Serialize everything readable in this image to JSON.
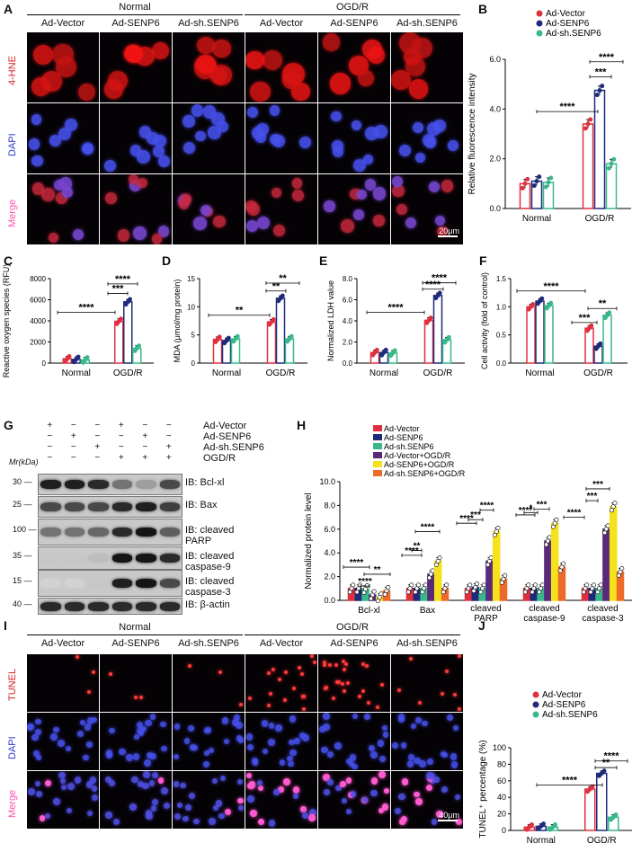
{
  "panels": {
    "A": "A",
    "B": "B",
    "C": "C",
    "D": "D",
    "E": "E",
    "F": "F",
    "G": "G",
    "H": "H",
    "I": "I",
    "J": "J"
  },
  "colors": {
    "vector": "#e0303f",
    "senp6": "#1f2b7a",
    "sh": "#39b98a",
    "vector_ogd": "#5a2a7a",
    "senp6_ogd": "#f5e21a",
    "sh_ogd": "#ee6a2a",
    "red_fluor": "#d81f1f",
    "blue_fluor": "#2a3ad0",
    "pink": "#ff4fb0"
  },
  "micro_A": {
    "group_normal": "Normal",
    "group_ogdr": "OGD/R",
    "cols": [
      "Ad-Vector",
      "Ad-SENP6",
      "Ad-sh.SENP6",
      "Ad-Vector",
      "Ad-SENP6",
      "Ad-sh.SENP6"
    ],
    "rows": [
      "4-HNE",
      "DAPI",
      "Merge"
    ],
    "scale": "20μm"
  },
  "micro_I": {
    "group_normal": "Normal",
    "group_ogdr": "OGD/R",
    "cols": [
      "Ad-Vector",
      "Ad-SENP6",
      "Ad-sh.SENP6",
      "Ad-Vector",
      "Ad-SENP6",
      "Ad-sh.SENP6"
    ],
    "rows": [
      "TUNEL",
      "DAPI",
      "Merge"
    ],
    "scale": "40μm"
  },
  "legend3": [
    "Ad-Vector",
    "Ad-SENP6",
    "Ad-sh.SENP6"
  ],
  "legend6": [
    "Ad-Vector",
    "Ad-SENP6",
    "Ad-sh.SENP6",
    "Ad-Vector+OGD/R",
    "Ad-SENP6+OGD/R",
    "Ad-sh.SENP6+OGD/R"
  ],
  "western": {
    "conditions": [
      [
        "+",
        "−",
        "−",
        "+",
        "−",
        "−"
      ],
      [
        "−",
        "+",
        "−",
        "−",
        "+",
        "−"
      ],
      [
        "−",
        "−",
        "+",
        "−",
        "−",
        "+"
      ],
      [
        "−",
        "−",
        "−",
        "+",
        "+",
        "+"
      ]
    ],
    "condition_labels": [
      "Ad-Vector",
      "Ad-SENP6",
      "Ad-sh.SENP6",
      "OGD/R"
    ],
    "mr_label": "Mr(kDa)",
    "mw": [
      "30",
      "25",
      "100",
      "35",
      "15",
      "40"
    ],
    "ib": [
      "IB: Bcl-xl",
      "IB: Bax",
      "IB: cleaved PARP",
      "IB: cleaved caspase-9",
      "IB: cleaved caspase-3",
      "IB: β-actin"
    ]
  },
  "chart_data": [
    {
      "panel": "B",
      "type": "bar",
      "categories": [
        "Normal",
        "OGD/R"
      ],
      "ylabel": "Relative fluorescence intensity",
      "ylim": [
        0,
        6
      ],
      "yticks": [
        "0.0",
        "2.0",
        "4.0",
        "6.0"
      ],
      "series": [
        {
          "name": "Ad-Vector",
          "values": [
            1.0,
            3.4
          ]
        },
        {
          "name": "Ad-SENP6",
          "values": [
            1.1,
            4.75
          ]
        },
        {
          "name": "Ad-sh.SENP6",
          "values": [
            1.05,
            1.8
          ]
        }
      ],
      "annotations": [
        "****",
        "***",
        "****"
      ]
    },
    {
      "panel": "C",
      "type": "bar",
      "categories": [
        "Normal",
        "OGD/R"
      ],
      "ylabel": "Reactive oxygen species (RFU)",
      "ylim": [
        0,
        8000
      ],
      "yticks": [
        "0",
        "2000",
        "4000",
        "6000",
        "8000"
      ],
      "series": [
        {
          "values": [
            400,
            3950
          ]
        },
        {
          "values": [
            350,
            5800
          ]
        },
        {
          "values": [
            300,
            1400
          ]
        }
      ],
      "annotations": [
        "****",
        "***",
        "****"
      ]
    },
    {
      "panel": "D",
      "type": "bar",
      "categories": [
        "Normal",
        "OGD/R"
      ],
      "ylabel": "MDA (μmol/mg protein)",
      "ylim": [
        0,
        15
      ],
      "yticks": [
        "0",
        "5",
        "10",
        "15"
      ],
      "series": [
        {
          "values": [
            4.2,
            7.3
          ]
        },
        {
          "values": [
            4.0,
            11.5
          ]
        },
        {
          "values": [
            4.3,
            4.3
          ]
        }
      ],
      "annotations": [
        "**",
        "**",
        "**"
      ]
    },
    {
      "panel": "E",
      "type": "bar",
      "categories": [
        "Normal",
        "OGD/R"
      ],
      "ylabel": "Normalized LDH value",
      "ylim": [
        0,
        8
      ],
      "yticks": [
        "0.0",
        "2.0",
        "4.0",
        "6.0",
        "8.0"
      ],
      "series": [
        {
          "values": [
            1.0,
            4.05
          ]
        },
        {
          "values": [
            1.0,
            6.4
          ]
        },
        {
          "values": [
            0.95,
            2.2
          ]
        }
      ],
      "annotations": [
        "****",
        "****",
        "****"
      ]
    },
    {
      "panel": "F",
      "type": "bar",
      "categories": [
        "Normal",
        "OGD/R"
      ],
      "ylabel": "Cell activity (fold of control)",
      "ylim": [
        0,
        1.5
      ],
      "yticks": [
        "0.0",
        "0.5",
        "1.0",
        "1.5"
      ],
      "series": [
        {
          "values": [
            1.0,
            0.62
          ]
        },
        {
          "values": [
            1.1,
            0.3
          ]
        },
        {
          "values": [
            1.02,
            0.85
          ]
        }
      ],
      "annotations": [
        "****",
        "***",
        "**"
      ]
    },
    {
      "panel": "H",
      "type": "bar",
      "categories": [
        "Bcl-xl",
        "Bax",
        "cleaved PARP",
        "cleaved caspase-9",
        "cleaved caspase-3"
      ],
      "ylabel": "Normalized protein level",
      "ylim": [
        0,
        10
      ],
      "yticks": [
        "0.0",
        "2.0",
        "4.0",
        "6.0",
        "8.0",
        "10.0"
      ],
      "series": [
        {
          "name": "Ad-Vector",
          "values": [
            1.0,
            1.0,
            1.0,
            1.0,
            1.0
          ]
        },
        {
          "name": "Ad-SENP6",
          "values": [
            1.0,
            1.0,
            1.1,
            1.0,
            1.0
          ]
        },
        {
          "name": "Ad-sh.SENP6",
          "values": [
            0.95,
            1.0,
            1.0,
            1.0,
            1.0
          ]
        },
        {
          "name": "Ad-Vector+OGD/R",
          "values": [
            0.45,
            2.2,
            3.3,
            5.0,
            6.0
          ]
        },
        {
          "name": "Ad-SENP6+OGD/R",
          "values": [
            0.25,
            3.3,
            5.8,
            6.5,
            7.9
          ]
        },
        {
          "name": "Ad-sh.SENP6+OGD/R",
          "values": [
            0.8,
            1.0,
            1.8,
            2.8,
            2.4
          ]
        }
      ],
      "annotations": [
        "****",
        "****",
        "**",
        "****",
        "**",
        "****",
        "****",
        "***",
        "****",
        "****",
        "*",
        "***",
        "****",
        "***",
        "***"
      ]
    },
    {
      "panel": "J",
      "type": "bar",
      "categories": [
        "Normal",
        "OGD/R"
      ],
      "ylabel": "TUNEL⁺ percentage (%)",
      "ylim": [
        0,
        100
      ],
      "yticks": [
        "0",
        "20",
        "40",
        "60",
        "80",
        "100"
      ],
      "series": [
        {
          "name": "Ad-Vector",
          "values": [
            4,
            50
          ]
        },
        {
          "name": "Ad-SENP6",
          "values": [
            5,
            69
          ]
        },
        {
          "name": "Ad-sh.SENP6",
          "values": [
            4,
            16
          ]
        }
      ],
      "annotations": [
        "****",
        "**",
        "****"
      ]
    }
  ]
}
